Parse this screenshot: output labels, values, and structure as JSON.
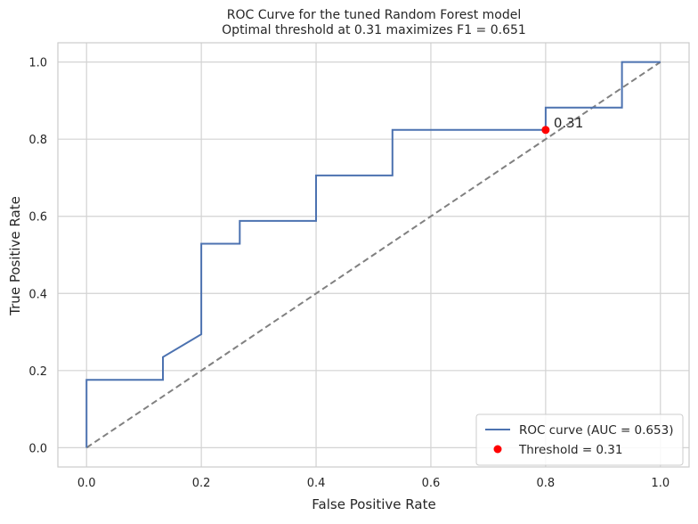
{
  "chart_data": {
    "type": "line",
    "title": "ROC Curve for the tuned Random Forest model",
    "subtitle": "Optimal threshold at 0.31 maximizes F1 = 0.651",
    "xlabel": "False Positive Rate",
    "ylabel": "True Positive Rate",
    "xlim": [
      -0.05,
      1.05
    ],
    "ylim": [
      -0.05,
      1.05
    ],
    "xticks": [
      0.0,
      0.2,
      0.4,
      0.6,
      0.8,
      1.0
    ],
    "yticks": [
      0.0,
      0.2,
      0.4,
      0.6,
      0.8,
      1.0
    ],
    "xtick_labels": [
      "0.0",
      "0.2",
      "0.4",
      "0.6",
      "0.8",
      "1.0"
    ],
    "ytick_labels": [
      "0.0",
      "0.2",
      "0.4",
      "0.6",
      "0.8",
      "1.0"
    ],
    "grid": true,
    "legend_position": "lower-right",
    "series": [
      {
        "name": "ROC curve (AUC = 0.653)",
        "color": "#4c72b0",
        "style": "step",
        "x": [
          0.0,
          0.0,
          0.133,
          0.133,
          0.2,
          0.2,
          0.267,
          0.267,
          0.4,
          0.4,
          0.533,
          0.533,
          0.8,
          0.8,
          0.933,
          0.933,
          1.0
        ],
        "y": [
          0.0,
          0.176,
          0.176,
          0.235,
          0.294,
          0.529,
          0.529,
          0.588,
          0.588,
          0.706,
          0.706,
          0.824,
          0.824,
          0.882,
          0.882,
          1.0,
          1.0
        ]
      }
    ],
    "reference_line": {
      "color": "#808080",
      "style": "dashed",
      "x": [
        0,
        1
      ],
      "y": [
        0,
        1
      ]
    },
    "threshold_point": {
      "name": "Threshold = 0.31",
      "color": "#ff0000",
      "x": 0.8,
      "y": 0.824,
      "annotation": "0.31"
    }
  }
}
